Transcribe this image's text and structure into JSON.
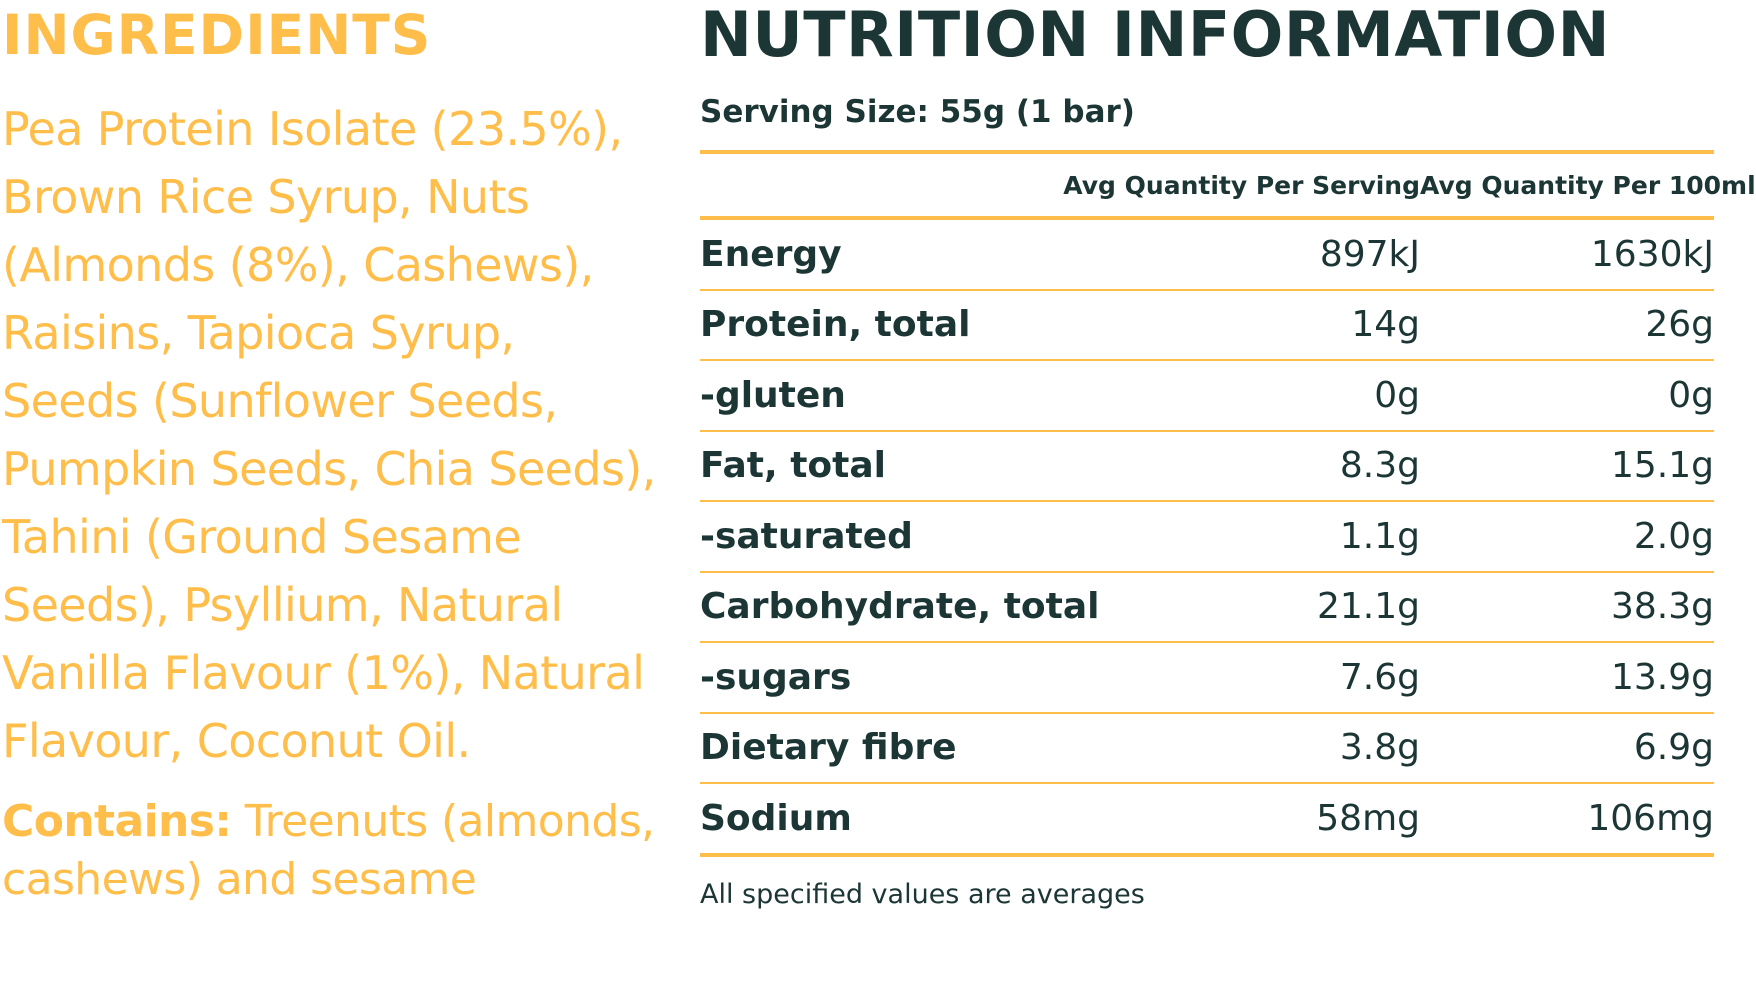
{
  "ingredients": {
    "title": "INGREDIENTS",
    "text": "Pea Protein Isolate (23.5%), Brown Rice Syrup, Nuts (Almonds (8%), Cashews), Raisins, Tapioca Syrup, Seeds (Sunflower Seeds, Pumpkin Seeds, Chia Seeds), Tahini (Ground Sesame Seeds), Psyllium, Natural Vanilla Flavour (1%), Natural Flavour, Coconut Oil.",
    "contains_label": "Contains:",
    "contains_text": " Treenuts (almonds, cashews) and sesame"
  },
  "nutrition": {
    "title": "NUTRITION INFORMATION",
    "serving_size": "Serving Size: 55g  (1 bar)",
    "header": {
      "per_serving": "Avg Quantity Per Serving",
      "per_100": "Avg Quantity Per 100ml"
    },
    "rows": [
      {
        "name": "Energy",
        "per_serving": "897kJ",
        "per_100": "1630kJ"
      },
      {
        "name": "Protein, total",
        "per_serving": "14g",
        "per_100": "26g"
      },
      {
        "name": "-gluten",
        "per_serving": "0g",
        "per_100": "0g"
      },
      {
        "name": "Fat, total",
        "per_serving": "8.3g",
        "per_100": "15.1g"
      },
      {
        "name": "-saturated",
        "per_serving": "1.1g",
        "per_100": "2.0g"
      },
      {
        "name": "Carbohydrate, total",
        "per_serving": "21.1g",
        "per_100": "38.3g"
      },
      {
        "name": "-sugars",
        "per_serving": "7.6g",
        "per_100": "13.9g"
      },
      {
        "name": "Dietary fibre",
        "per_serving": "3.8g",
        "per_100": "6.9g"
      },
      {
        "name": "Sodium",
        "per_serving": "58mg",
        "per_100": "106mg"
      }
    ],
    "footnote": "All specified values are averages"
  },
  "colors": {
    "accent": "#ffbd4a",
    "text_dark": "#1b3634"
  }
}
